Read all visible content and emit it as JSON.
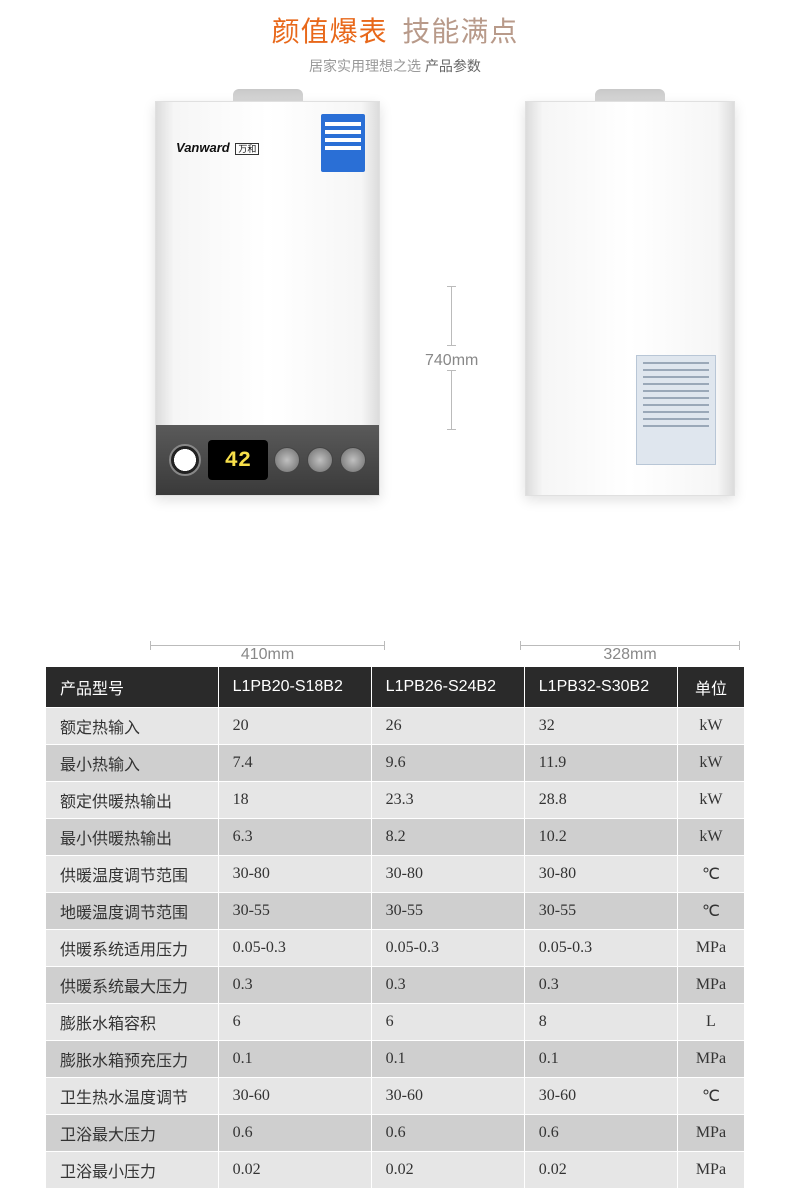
{
  "header": {
    "title_left": "颜值爆表",
    "title_right": "技能满点",
    "title_left_color": "#e8681a",
    "title_right_color": "#b89a8a",
    "title_fontsize": 28,
    "subtitle_plain": "居家实用理想之选 ",
    "subtitle_strong": "产品参数",
    "subtitle_fontsize": 14
  },
  "product": {
    "brand": "Vanward",
    "brand_cn": "万和",
    "lcd_value": "42",
    "lcd_color": "#f7df4a",
    "energy_label_color": "#2a6fd6",
    "dimensions": {
      "height": "740mm",
      "front_width": "410mm",
      "depth": "328mm"
    }
  },
  "spec_table": {
    "header_bg": "#2a2a2a",
    "header_color": "#ffffff",
    "row_odd_bg": "#e6e6e6",
    "row_even_bg": "#cfcfcf",
    "cell_font_family": "SimSun",
    "label_font_family": "Microsoft YaHei",
    "fontsize": 16,
    "columns": [
      "产品型号",
      "L1PB20-S18B2",
      "L1PB26-S24B2",
      "L1PB32-S30B2",
      "单位"
    ],
    "rows": [
      {
        "label": "额定热输入",
        "v": [
          "20",
          "26",
          "32"
        ],
        "unit": "kW"
      },
      {
        "label": "最小热输入",
        "v": [
          "7.4",
          "9.6",
          "11.9"
        ],
        "unit": "kW"
      },
      {
        "label": "额定供暖热输出",
        "v": [
          "18",
          "23.3",
          "28.8"
        ],
        "unit": "kW"
      },
      {
        "label": "最小供暖热输出",
        "v": [
          "6.3",
          "8.2",
          "10.2"
        ],
        "unit": "kW"
      },
      {
        "label": "供暖温度调节范围",
        "v": [
          "30-80",
          "30-80",
          "30-80"
        ],
        "unit": "℃"
      },
      {
        "label": "地暖温度调节范围",
        "v": [
          "30-55",
          "30-55",
          "30-55"
        ],
        "unit": "℃"
      },
      {
        "label": "供暖系统适用压力",
        "v": [
          "0.05-0.3",
          "0.05-0.3",
          "0.05-0.3"
        ],
        "unit": "MPa"
      },
      {
        "label": "供暖系统最大压力",
        "v": [
          "0.3",
          "0.3",
          "0.3"
        ],
        "unit": "MPa"
      },
      {
        "label": "膨胀水箱容积",
        "v": [
          "6",
          "6",
          "8"
        ],
        "unit": "L"
      },
      {
        "label": "膨胀水箱预充压力",
        "v": [
          "0.1",
          "0.1",
          "0.1"
        ],
        "unit": "MPa"
      },
      {
        "label": "卫生热水温度调节",
        "v": [
          "30-60",
          "30-60",
          "30-60"
        ],
        "unit": "℃"
      },
      {
        "label": "卫浴最大压力",
        "v": [
          "0.6",
          "0.6",
          "0.6"
        ],
        "unit": "MPa"
      },
      {
        "label": "卫浴最小压力",
        "v": [
          "0.02",
          "0.02",
          "0.02"
        ],
        "unit": "MPa"
      }
    ]
  }
}
